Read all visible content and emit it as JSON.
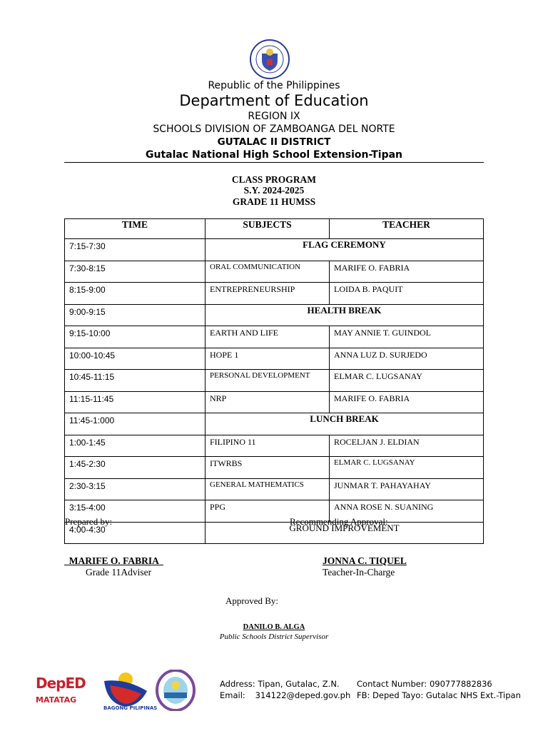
{
  "header": {
    "seal_text": "KAGAWARAN NG EDUKASYON",
    "country": "Republic of the Philippines",
    "department": "Department of Education",
    "region": "REGION IX",
    "division": "SCHOOLS DIVISION OF ZAMBOANGA DEL NORTE",
    "district": "GUTALAC II DISTRICT",
    "school": "Gutalac National High School Extension-Tipan"
  },
  "program": {
    "title": "CLASS PROGRAM",
    "sy": "S.Y. 2024-2025",
    "grade": "GRADE 11 HUMSS"
  },
  "table": {
    "headers": [
      "TIME",
      "SUBJECTS",
      "TEACHER"
    ],
    "rows": [
      {
        "time": "7:15-7:30",
        "span": "FLAG CEREMONY",
        "bold": true
      },
      {
        "time": "7:30-8:15",
        "subject": "ORAL COMMUNICATION",
        "teacher": "MARIFE O. FABRIA",
        "small": true
      },
      {
        "time": "8:15-9:00",
        "subject": "ENTREPRENEURSHIP",
        "teacher": "LOIDA B. PAQUIT"
      },
      {
        "time": "9:00-9:15",
        "span": "HEALTH BREAK",
        "bold": true
      },
      {
        "time": "9:15-10:00",
        "subject": "EARTH AND LIFE",
        "teacher": "MAY ANNIE T. GUINDOL"
      },
      {
        "time": "10:00-10:45",
        "subject": "HOPE 1",
        "teacher": "ANNA LUZ D. SURJEDO"
      },
      {
        "time": "10:45-11:15",
        "subject": "PERSONAL DEVELOPMENT",
        "teacher": "ELMAR C. LUGSANAY",
        "small": true
      },
      {
        "time": "11:15-11:45",
        "subject": "NRP",
        "teacher": "MARIFE O. FABRIA"
      },
      {
        "time": "11:45-1:000",
        "span": "LUNCH BREAK",
        "bold": true
      },
      {
        "time": "1:00-1:45",
        "subject": "FILIPINO 11",
        "teacher": "ROCELJAN J. ELDIAN"
      },
      {
        "time": "1:45-2:30",
        "subject": "ITWRBS",
        "teacher": "ELMAR C. LUGSANAY",
        "smallTeacher": true
      },
      {
        "time": "2:30-3:15",
        "subject": "GENERAL MATHEMATICS",
        "teacher": "JUNMAR T. PAHAYAHAY",
        "small": true
      },
      {
        "time": "3:15-4:00",
        "subject": "PPG",
        "teacher": "ANNA ROSE N. SUANING"
      },
      {
        "time": "4:00-4:30",
        "span": "GROUND IMPROVEMENT",
        "bold": false
      }
    ]
  },
  "signatures": {
    "prepared_label": "Prepared by:",
    "recommending_label": "Recommending Approval:",
    "preparer_name": "MARIFE O. FABRIA",
    "preparer_title": "Grade 11Adviser",
    "recommender_name": "JONNA C. TIQUEL",
    "recommender_title": "Teacher-In-Charge",
    "approved_label": "Approved By:",
    "approver_name": "DANILO B. ALGA",
    "approver_title": "Public Schools District Supervisor"
  },
  "footer": {
    "deped_logo": "DepED",
    "matatag": "MATATAG",
    "bagong": "BAGONG PILIPINAS",
    "address_label": "Address:",
    "address": "Tipan, Gutalac, Z.N.",
    "email_label": "Email:",
    "email": "314122@deped.gov.ph",
    "contact_label": "Contact Number:",
    "contact": "090777882836",
    "fb_label": "FB:",
    "fb": "Deped Tayo: Gutalac NHS Ext.-Tipan"
  }
}
